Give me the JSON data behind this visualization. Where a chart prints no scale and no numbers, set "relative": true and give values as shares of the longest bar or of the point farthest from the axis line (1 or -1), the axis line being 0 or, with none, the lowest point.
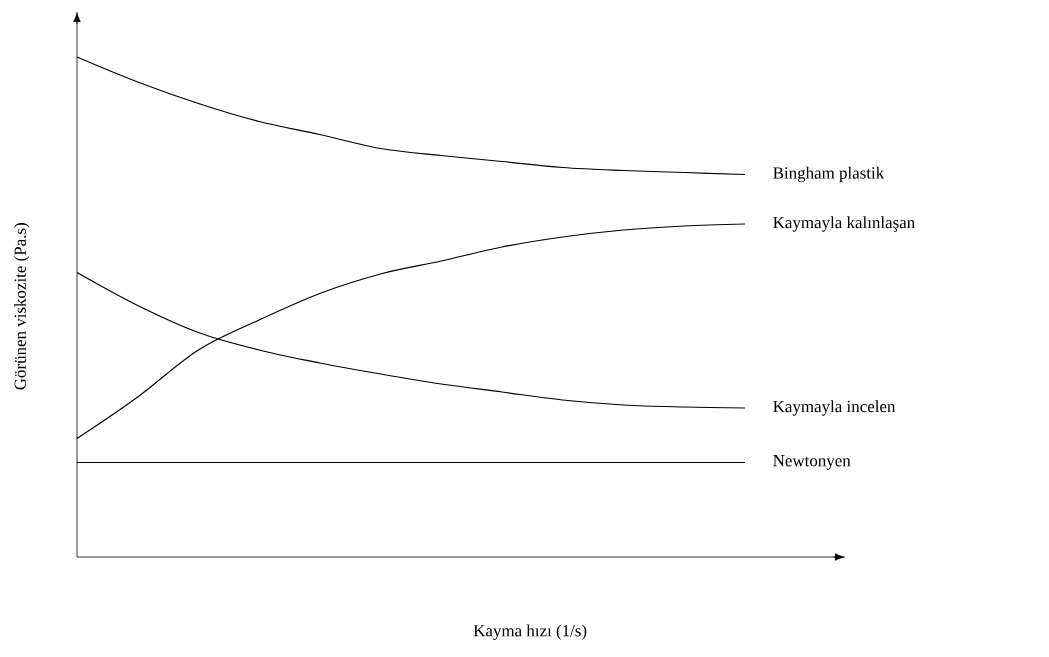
{
  "chart_data": {
    "type": "line",
    "relative": true,
    "xlabel": "Kayma hızı (1/s)",
    "ylabel": "Görünen viskozite (Pa.s)",
    "categories": [
      null,
      null,
      null,
      null,
      null,
      null,
      null,
      null,
      null,
      null,
      null,
      null
    ],
    "line_style": "solid",
    "series": [
      {
        "name": "Bingham plastik",
        "color": "#000000",
        "values": [
          1.0,
          0.95,
          0.907,
          0.871,
          0.845,
          0.817,
          0.803,
          0.791,
          0.779,
          0.773,
          0.769,
          0.765
        ]
      },
      {
        "name": "Kaymayla kalınlaşan",
        "color": "#000000",
        "values": [
          0.237,
          0.32,
          0.414,
          0.474,
          0.527,
          0.566,
          0.592,
          0.62,
          0.64,
          0.654,
          0.662,
          0.666
        ]
      },
      {
        "name": "Kaymayla incelen",
        "color": "#000000",
        "values": [
          0.569,
          0.503,
          0.449,
          0.414,
          0.388,
          0.366,
          0.346,
          0.33,
          0.314,
          0.304,
          0.3,
          0.298
        ]
      },
      {
        "name": "Newtonyen",
        "color": "#000000",
        "values": [
          0.189,
          0.189,
          0.189,
          0.189,
          0.189,
          0.189,
          0.189,
          0.189,
          0.189,
          0.189,
          0.189,
          0.189
        ]
      }
    ]
  }
}
